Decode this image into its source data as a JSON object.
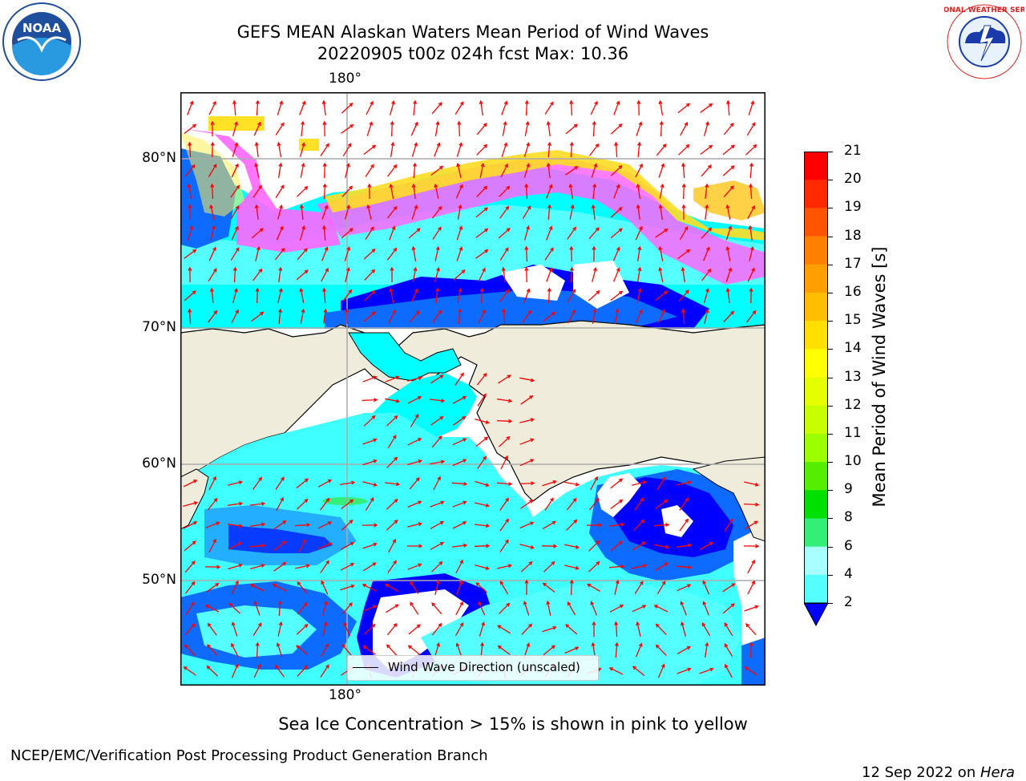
{
  "title": {
    "line1": "GEFS MEAN Alaskan Waters Mean Period of Wind Waves",
    "line2": "20220905 t00z 024h fcst   Max: 10.36"
  },
  "map": {
    "top_lon_label": "180°",
    "bottom_lon_label": "180°",
    "lat_labels": [
      "80°N",
      "70°N",
      "60°N",
      "50°N"
    ],
    "legend_label": "Wind Wave Direction (unscaled)",
    "land_color": "#efecdc",
    "ocean_colors": [
      "#0000ff",
      "#0d6cff",
      "#00ffff",
      "#40ffff",
      "#80ffff",
      "#bbfff8"
    ],
    "ice_colors": [
      "#ff66ff",
      "#ffaaee",
      "#ffdd00"
    ],
    "arrow_color": "#ff0000"
  },
  "colorbar": {
    "label": "Mean Period of Wind Waves [s]",
    "ticks": [
      "21",
      "20",
      "19",
      "18",
      "17",
      "16",
      "15",
      "14",
      "13",
      "12",
      "11",
      "10",
      "9",
      "8",
      "6",
      "4",
      "2"
    ],
    "colors_top_to_bottom": [
      "#ff0000",
      "#ff2a00",
      "#ff5500",
      "#ff7f00",
      "#ffa000",
      "#ffbf00",
      "#ffe000",
      "#ffff00",
      "#e6ff00",
      "#c8ff00",
      "#9cff00",
      "#55ee00",
      "#00e000",
      "#33ee77",
      "#a8ffff",
      "#55ffff",
      "#00ffff",
      "#0070ff",
      "#0000ff"
    ]
  },
  "caption": "Sea Ice Concentration > 15% is shown in pink to yellow",
  "footer": {
    "left": "NCEP/EMC/Verification Post Processing Product Generation Branch",
    "right_date": "12 Sep 2022 on ",
    "right_host": "Hera"
  },
  "logos": {
    "noaa_text": "NOAA",
    "nws_ring_text": "NATIONAL WEATHER SERVICE"
  }
}
